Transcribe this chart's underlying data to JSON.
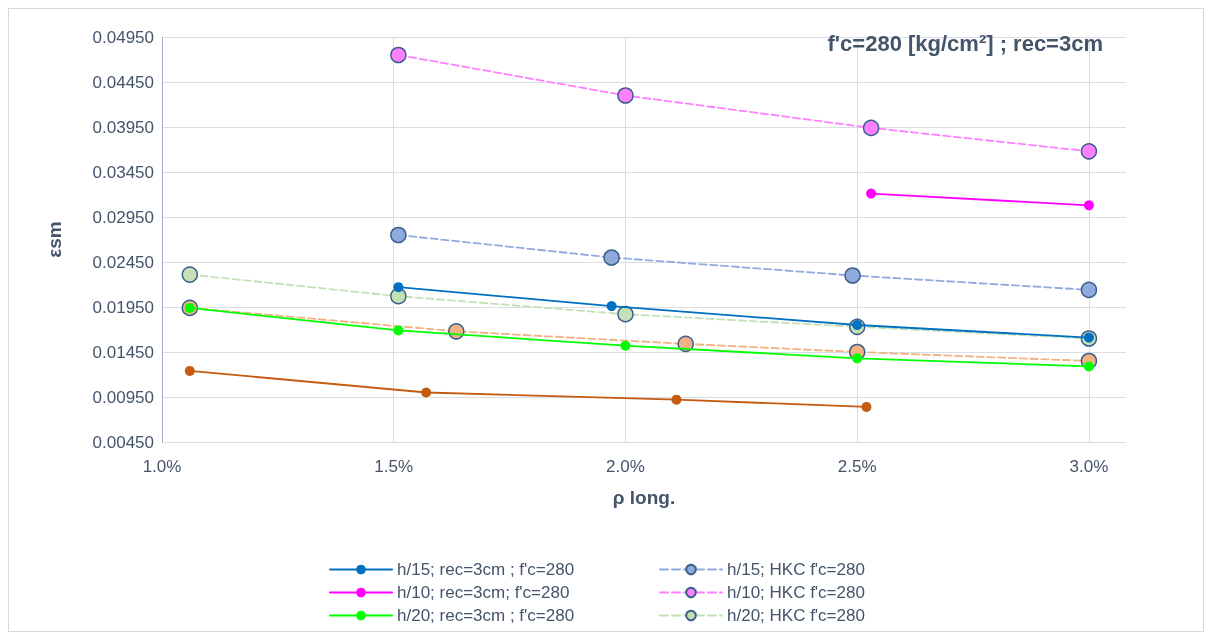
{
  "chart_data": {
    "type": "line",
    "title": "f'c=280 [kg/cm²] ; rec=3cm",
    "xlabel": "ρ long.",
    "ylabel": "εsm",
    "xlim": [
      1.0,
      3.08
    ],
    "xticks": [
      {
        "value": 1.0,
        "label": "1.0%"
      },
      {
        "value": 1.5,
        "label": "1.5%"
      },
      {
        "value": 2.0,
        "label": "2.0%"
      },
      {
        "value": 2.5,
        "label": "2.5%"
      },
      {
        "value": 3.0,
        "label": "3.0%"
      }
    ],
    "ylim": [
      0.0045,
      0.0495
    ],
    "yticks": [
      {
        "value": 0.0045,
        "label": "0.00450"
      },
      {
        "value": 0.0095,
        "label": "0.00950"
      },
      {
        "value": 0.0145,
        "label": "0.01450"
      },
      {
        "value": 0.0195,
        "label": "0.01950"
      },
      {
        "value": 0.0245,
        "label": "0.02450"
      },
      {
        "value": 0.0295,
        "label": "0.02950"
      },
      {
        "value": 0.0345,
        "label": "0.03450"
      },
      {
        "value": 0.0395,
        "label": "0.03950"
      },
      {
        "value": 0.0445,
        "label": "0.04450"
      },
      {
        "value": 0.0495,
        "label": "0.04950"
      }
    ],
    "grid": true,
    "legend": "bottom",
    "marker": "circle",
    "series": [
      {
        "name": "h/15; rec=3cm ; f'c=280",
        "color": "#0070c0",
        "line_style": "solid",
        "x": [
          1.51,
          1.97,
          2.5,
          3.0
        ],
        "values": [
          0.0217,
          0.0196,
          0.0175,
          0.0161
        ]
      },
      {
        "name": "h/15; HKC f'c=280",
        "color": "#8faadc",
        "line_style": "dashed",
        "x": [
          1.51,
          1.97,
          2.49,
          3.0
        ],
        "values": [
          0.0275,
          0.025,
          0.023,
          0.0214
        ]
      },
      {
        "name": "h/10; rec=3cm; f'c=280",
        "color": "#ff00ff",
        "line_style": "solid",
        "x": [
          2.53,
          3.0
        ],
        "values": [
          0.0321,
          0.0308
        ]
      },
      {
        "name": "h/10; HKC f'c=280",
        "color": "#ff80ff",
        "line_style": "dashed",
        "x": [
          1.51,
          2.0,
          2.53,
          3.0
        ],
        "values": [
          0.0475,
          0.043,
          0.0394,
          0.0368
        ]
      },
      {
        "name": "h/20; rec=3cm ; f'c=280",
        "color": "#00ff00",
        "line_style": "solid",
        "x": [
          1.06,
          1.51,
          2.0,
          2.5,
          3.0
        ],
        "values": [
          0.0194,
          0.0169,
          0.0152,
          0.0138,
          0.0129
        ]
      },
      {
        "name": "h/20; HKC f'c=280",
        "color": "#c5e0b4",
        "line_style": "dashed",
        "x": [
          1.06,
          1.51,
          2.0,
          2.5,
          3.0
        ],
        "values": [
          0.0231,
          0.0207,
          0.0187,
          0.0173,
          0.016
        ]
      },
      {
        "color": "#c55a11",
        "line_style": "solid",
        "x": [
          1.06,
          1.57,
          2.11,
          2.52
        ],
        "values": [
          0.0124,
          0.01,
          0.0092,
          0.0084
        ]
      },
      {
        "color": "#f4b183",
        "line_style": "dashed",
        "x": [
          1.06,
          1.635,
          2.13,
          2.5,
          3.0
        ],
        "values": [
          0.0194,
          0.0168,
          0.0154,
          0.0145,
          0.0135
        ]
      }
    ]
  }
}
